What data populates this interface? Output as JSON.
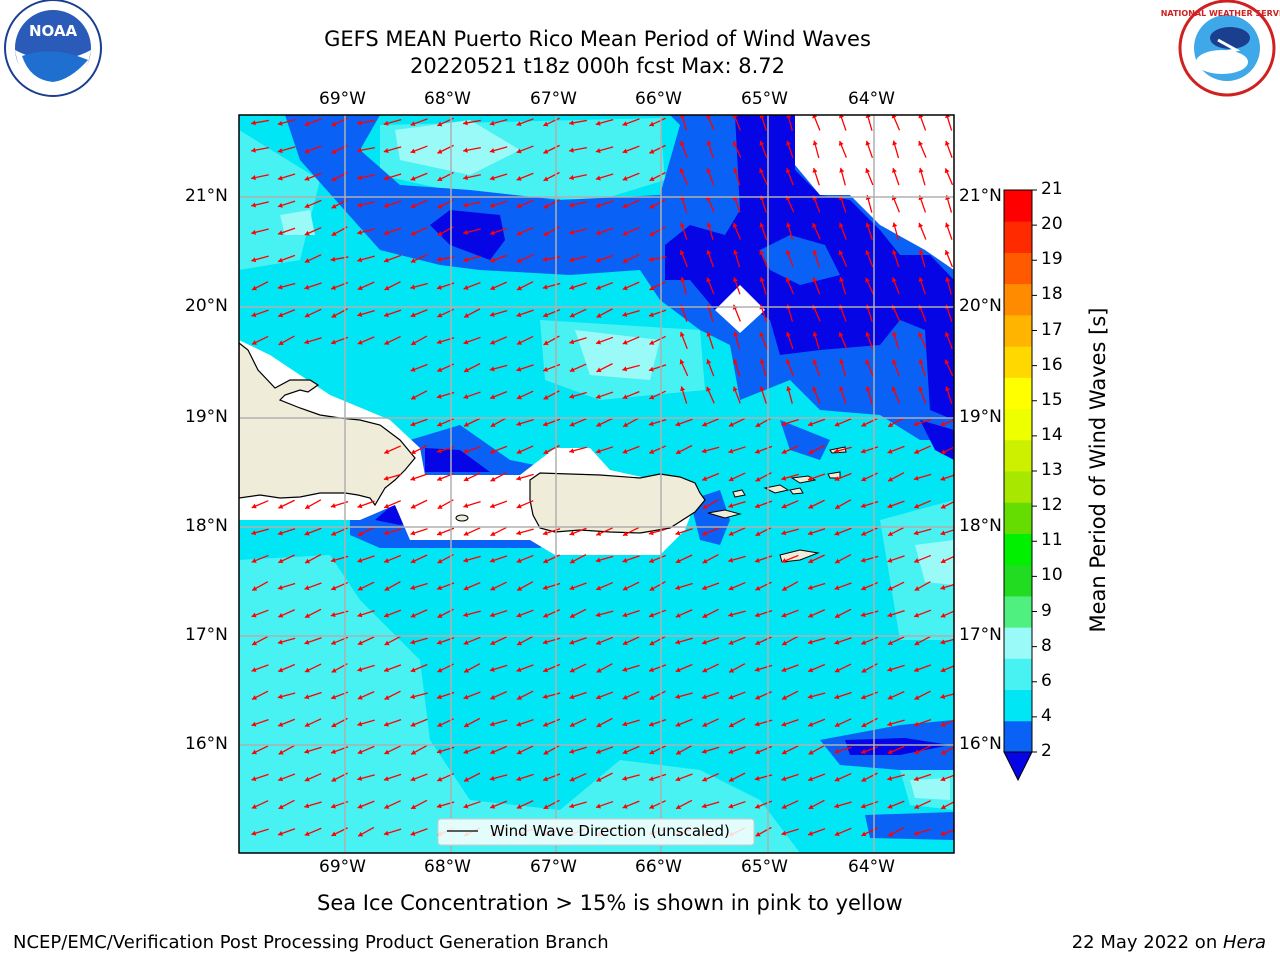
{
  "header": {
    "title_line1": "GEFS MEAN Puerto Rico Mean Period of Wind Waves",
    "title_line2": "20220521 t18z 000h fcst   Max: 8.72"
  },
  "logos": {
    "left": {
      "name": "noaa-logo",
      "text": "NOAA"
    },
    "right": {
      "name": "nws-logo",
      "text": "NATIONAL WEATHER SERVICE"
    }
  },
  "axes": {
    "lon_labels": [
      "69°W",
      "68°W",
      "67°W",
      "66°W",
      "65°W",
      "64°W"
    ],
    "lat_labels": [
      "21°N",
      "20°N",
      "19°N",
      "18°N",
      "17°N",
      "16°N"
    ]
  },
  "legend": {
    "label": "Wind Wave Direction (unscaled)"
  },
  "colorbar": {
    "label": "Mean Period of Wind Waves [s]",
    "ticks": [
      "2",
      "4",
      "6",
      "8",
      "9",
      "10",
      "11",
      "12",
      "13",
      "14",
      "15",
      "16",
      "17",
      "18",
      "19",
      "20",
      "21"
    ],
    "colors": [
      "#0a61f5",
      "#00e6f5",
      "#48f2f2",
      "#9afaf8",
      "#50f080",
      "#22dc22",
      "#00f000",
      "#66dd00",
      "#a8e800",
      "#ccf000",
      "#eeff00",
      "#ffff00",
      "#ffd800",
      "#ffb400",
      "#ff8c00",
      "#ff5a00",
      "#ff2a00",
      "#ff0000"
    ],
    "extend_color": "#0505e6"
  },
  "caption": "Sea Ice Concentration > 15% is shown in pink to yellow",
  "footer": {
    "left": "NCEP/EMC/Verification Post Processing Product Generation Branch",
    "right_prefix": "22 May 2022 on ",
    "right_italic": "Hera"
  }
}
